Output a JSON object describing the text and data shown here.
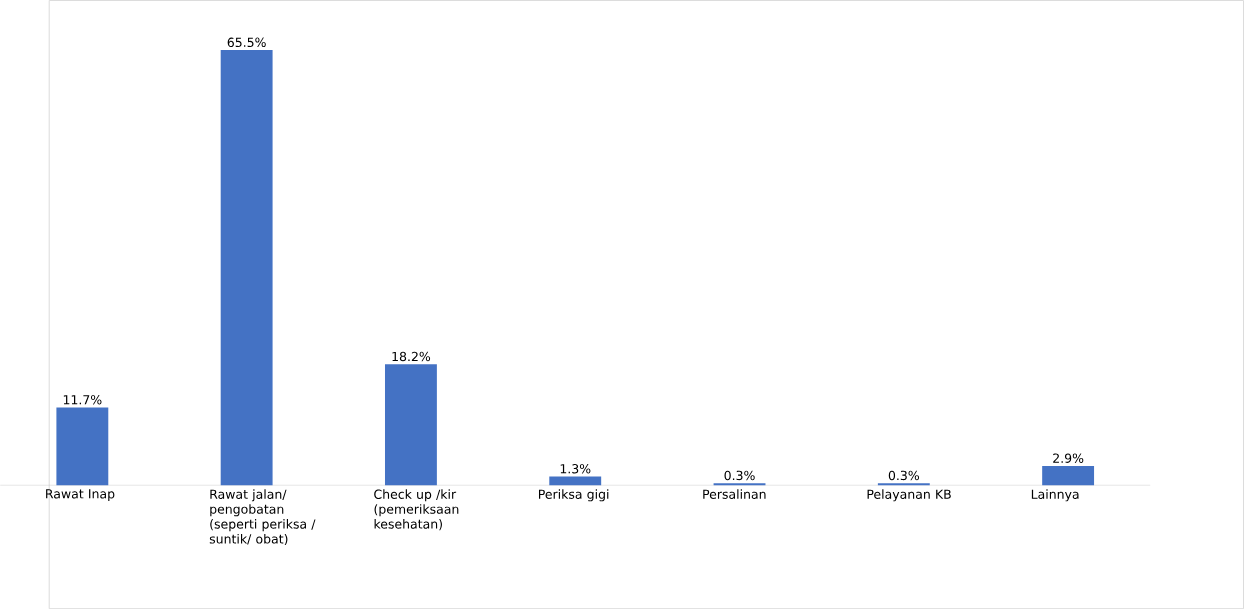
{
  "chart_data": {
    "type": "bar",
    "categories": [
      "Rawat Inap",
      "Rawat jalan/ pengobatan (seperti periksa / suntik/ obat)",
      "Check up /kir (pemeriksaan kesehatan)",
      "Periksa gigi",
      "Persalinan",
      "Pelayanan KB",
      "Lainnya"
    ],
    "values": [
      11.7,
      65.5,
      18.2,
      1.3,
      0.3,
      0.3,
      2.9
    ],
    "value_labels": [
      "11.7%",
      "65.5%",
      "18.2%",
      "1.3%",
      "0.3%",
      "0.3%",
      "2.9%"
    ],
    "color": "#4472c4"
  }
}
